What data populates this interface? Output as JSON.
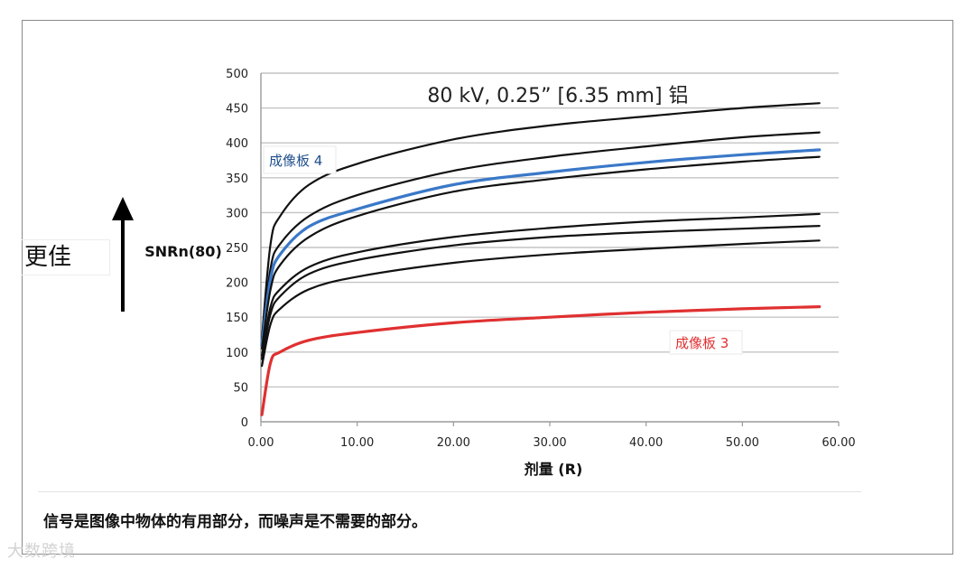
{
  "better_label": "更佳",
  "caption": "信号是图像中物体的有用部分，而噪声是不需要的部分。",
  "watermark": "大数跨境",
  "chart_data": {
    "type": "line",
    "title": "80 kV, 0.25” [6.35 mm] 铝",
    "xlabel": "剂量 (R)",
    "ylabel": "SNRn(80)",
    "xlim": [
      0,
      60
    ],
    "ylim": [
      0,
      500
    ],
    "x_ticks": [
      "0.00",
      "10.00",
      "20.00",
      "30.00",
      "40.00",
      "50.00",
      "60.00"
    ],
    "y_ticks": [
      "0",
      "50",
      "100",
      "150",
      "200",
      "250",
      "300",
      "350",
      "400",
      "450",
      "500"
    ],
    "grid": "horizontal",
    "annotations": [
      {
        "text": "成像板 4",
        "color": "#1f4e8c"
      },
      {
        "text": "成像板 3",
        "color": "#e03030"
      }
    ],
    "series": [
      {
        "color": "#111111",
        "x": [
          0.1,
          1,
          2,
          5,
          10,
          20,
          30,
          40,
          50,
          58
        ],
        "values": [
          120,
          255,
          295,
          340,
          370,
          405,
          425,
          438,
          450,
          457
        ]
      },
      {
        "color": "#111111",
        "x": [
          0.1,
          1,
          2,
          5,
          10,
          20,
          30,
          40,
          50,
          58
        ],
        "values": [
          115,
          220,
          255,
          295,
          325,
          360,
          380,
          395,
          408,
          415
        ]
      },
      {
        "color": "#3a78c8",
        "x": [
          0.1,
          1,
          2,
          5,
          10,
          20,
          30,
          40,
          50,
          58
        ],
        "values": [
          110,
          205,
          240,
          280,
          305,
          340,
          358,
          372,
          383,
          390
        ]
      },
      {
        "color": "#111111",
        "x": [
          0.1,
          1,
          2,
          5,
          10,
          20,
          30,
          40,
          50,
          58
        ],
        "values": [
          105,
          190,
          225,
          265,
          295,
          330,
          348,
          362,
          373,
          380
        ]
      },
      {
        "color": "#111111",
        "x": [
          0.1,
          1,
          2,
          5,
          10,
          20,
          30,
          40,
          50,
          58
        ],
        "values": [
          95,
          165,
          190,
          222,
          243,
          265,
          278,
          287,
          293,
          298
        ]
      },
      {
        "color": "#111111",
        "x": [
          0.1,
          1,
          2,
          5,
          10,
          20,
          30,
          40,
          50,
          58
        ],
        "values": [
          90,
          155,
          180,
          212,
          232,
          253,
          265,
          272,
          277,
          281
        ]
      },
      {
        "color": "#111111",
        "x": [
          0.1,
          1,
          2,
          5,
          10,
          20,
          30,
          40,
          50,
          58
        ],
        "values": [
          80,
          140,
          162,
          190,
          208,
          228,
          240,
          248,
          255,
          260
        ]
      },
      {
        "color": "#e03030",
        "x": [
          0.1,
          1,
          2,
          5,
          10,
          20,
          30,
          40,
          50,
          58
        ],
        "values": [
          10,
          85,
          100,
          117,
          128,
          142,
          150,
          157,
          162,
          165
        ]
      }
    ]
  }
}
